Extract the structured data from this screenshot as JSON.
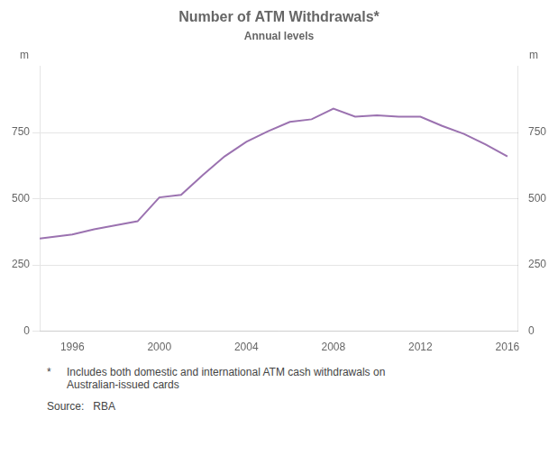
{
  "chart_data": {
    "type": "line",
    "title": "Number of ATM Withdrawals*",
    "subtitle": "Annual levels",
    "y_label": "m",
    "y2_label": "m",
    "annotations": [
      "*",
      "Includes both domestic and international ATM cash withdrawals on\nAustralian-issued cards",
      "Source:   RBA"
    ],
    "color": "#9b72b0",
    "x": [
      1994.5,
      1995,
      1996,
      1997,
      1998,
      1999,
      2000,
      2001,
      2002,
      2003,
      2004,
      2005,
      2006,
      2007,
      2008,
      2009,
      2010,
      2011,
      2012,
      2013,
      2014,
      2015,
      2016
    ],
    "values": [
      350,
      355,
      365,
      385,
      400,
      415,
      505,
      515,
      590,
      660,
      715,
      755,
      790,
      800,
      840,
      810,
      815,
      810,
      810,
      775,
      745,
      705,
      660
    ],
    "xlim": [
      1994.5,
      2016.5
    ],
    "xticks": [
      1996,
      2000,
      2004,
      2008,
      2012,
      2016
    ],
    "ylim": [
      0,
      1000
    ],
    "yticks": [
      0,
      250,
      500,
      750
    ],
    "y2lim": [
      0,
      1000
    ],
    "y2ticks": [
      0,
      250,
      500,
      750
    ],
    "grid": true
  }
}
